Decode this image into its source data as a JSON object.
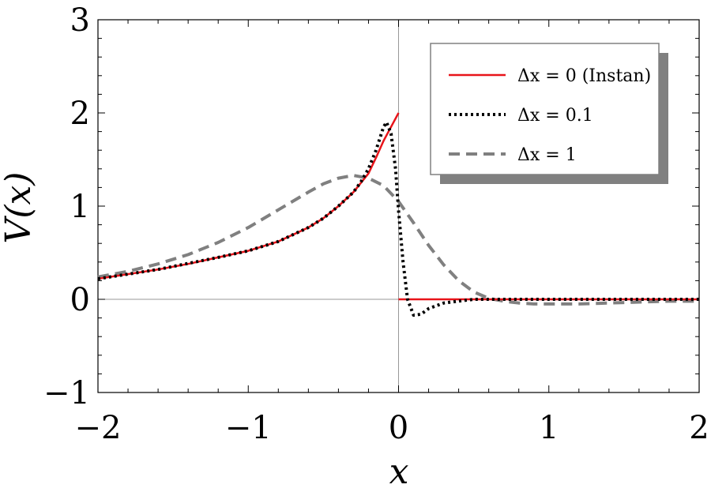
{
  "chart_data": {
    "type": "line",
    "xlabel": "x",
    "ylabel": "V(x)",
    "xlim": [
      -2,
      2
    ],
    "ylim": [
      -1,
      3
    ],
    "x_ticks": [
      -2,
      -1,
      0,
      1,
      2
    ],
    "y_ticks": [
      -1,
      0,
      1,
      2,
      3
    ],
    "x_tick_labels": [
      "−2",
      "−1",
      "0",
      "1",
      "2"
    ],
    "y_tick_labels": [
      "−1",
      "0",
      "1",
      "2",
      "3"
    ],
    "grid": false,
    "legend_position": "top-right",
    "series": [
      {
        "name": "Δx = 0 (Instan)",
        "style": "solid",
        "color": "#e8141a",
        "segments": [
          {
            "x": [
              -2,
              -1.8,
              -1.6,
              -1.4,
              -1.2,
              -1.0,
              -0.8,
              -0.6,
              -0.5,
              -0.4,
              -0.3,
              -0.2,
              -0.15,
              -0.1,
              -0.05,
              0
            ],
            "y": [
              0.22,
              0.27,
              0.32,
              0.38,
              0.45,
              0.52,
              0.62,
              0.77,
              0.87,
              1.0,
              1.15,
              1.35,
              1.52,
              1.7,
              1.85,
              2.0
            ]
          },
          {
            "x": [
              0,
              0.5,
              1.0,
              1.5,
              2.0
            ],
            "y": [
              0,
              0,
              0,
              0,
              0
            ]
          }
        ]
      },
      {
        "name": "Δx = 0.1",
        "style": "dotted",
        "color": "#000000",
        "segments": [
          {
            "x": [
              -2,
              -1.6,
              -1.2,
              -1.0,
              -0.8,
              -0.6,
              -0.5,
              -0.4,
              -0.3,
              -0.25,
              -0.2,
              -0.15,
              -0.1,
              -0.08,
              -0.05,
              -0.02,
              0,
              0.03,
              0.06,
              0.1,
              0.15,
              0.2,
              0.3,
              0.5,
              0.8,
              1.0,
              1.5,
              2.0
            ],
            "y": [
              0.22,
              0.32,
              0.45,
              0.52,
              0.62,
              0.77,
              0.87,
              1.0,
              1.15,
              1.26,
              1.4,
              1.6,
              1.85,
              1.9,
              1.78,
              1.4,
              0.95,
              0.4,
              0.0,
              -0.17,
              -0.16,
              -0.1,
              -0.04,
              0.0,
              0.0,
              0.0,
              0.0,
              0.0
            ]
          }
        ]
      },
      {
        "name": "Δx = 1",
        "style": "dashed",
        "color": "#808080",
        "segments": [
          {
            "x": [
              -2,
              -1.8,
              -1.6,
              -1.4,
              -1.2,
              -1.0,
              -0.8,
              -0.6,
              -0.5,
              -0.4,
              -0.3,
              -0.2,
              -0.1,
              0,
              0.1,
              0.2,
              0.3,
              0.4,
              0.5,
              0.6,
              0.7,
              0.8,
              0.9,
              1.0,
              1.2,
              1.4,
              1.6,
              1.8,
              2.0
            ],
            "y": [
              0.24,
              0.3,
              0.38,
              0.48,
              0.61,
              0.77,
              0.96,
              1.15,
              1.24,
              1.3,
              1.33,
              1.3,
              1.22,
              1.05,
              0.82,
              0.58,
              0.37,
              0.2,
              0.08,
              0.01,
              -0.02,
              -0.04,
              -0.05,
              -0.05,
              -0.05,
              -0.04,
              -0.03,
              -0.02,
              -0.02
            ]
          }
        ]
      }
    ]
  }
}
